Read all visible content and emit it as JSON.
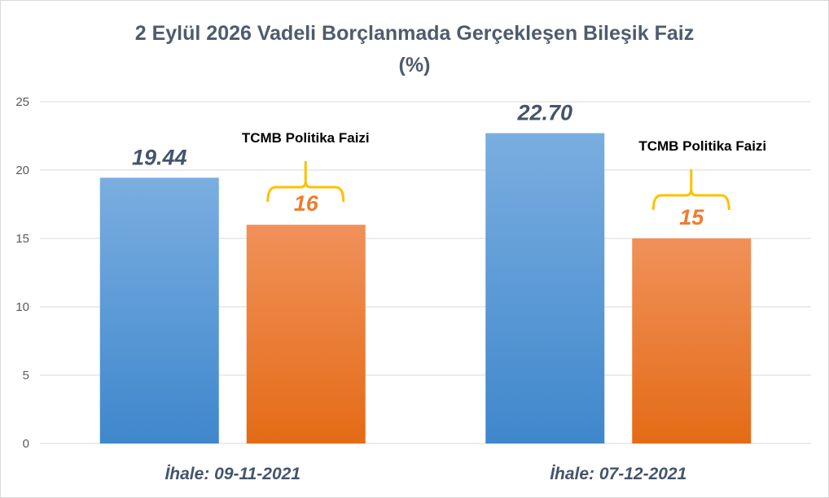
{
  "chart_data": {
    "type": "bar",
    "title": "2 Eylül 2026 Vadeli Borçlanmada Gerçekleşen Bileşik Faiz",
    "subtitle": "(%)",
    "categories": [
      "İhale: 09-11-2021",
      "İhale: 07-12-2021"
    ],
    "series": [
      {
        "values": [
          19.44,
          22.7
        ],
        "labels": [
          "19.44",
          "22.70"
        ],
        "color": "#5b9bd5"
      },
      {
        "values": [
          16,
          15
        ],
        "labels": [
          "16",
          "15"
        ],
        "color": "#ed7d31"
      }
    ],
    "annotations": [
      {
        "text": "TCMB Politika Faizi",
        "category": 0
      },
      {
        "text": "TCMB Politika Faizi",
        "category": 1
      }
    ],
    "yticks": [
      "0",
      "5",
      "10",
      "15",
      "20",
      "25"
    ],
    "ylim": [
      0,
      25
    ],
    "grid": true,
    "legend": "none",
    "colors": {
      "bracket": "#ffc000",
      "title": "#4e5b6e",
      "gridline": "#d9d9d9"
    }
  }
}
